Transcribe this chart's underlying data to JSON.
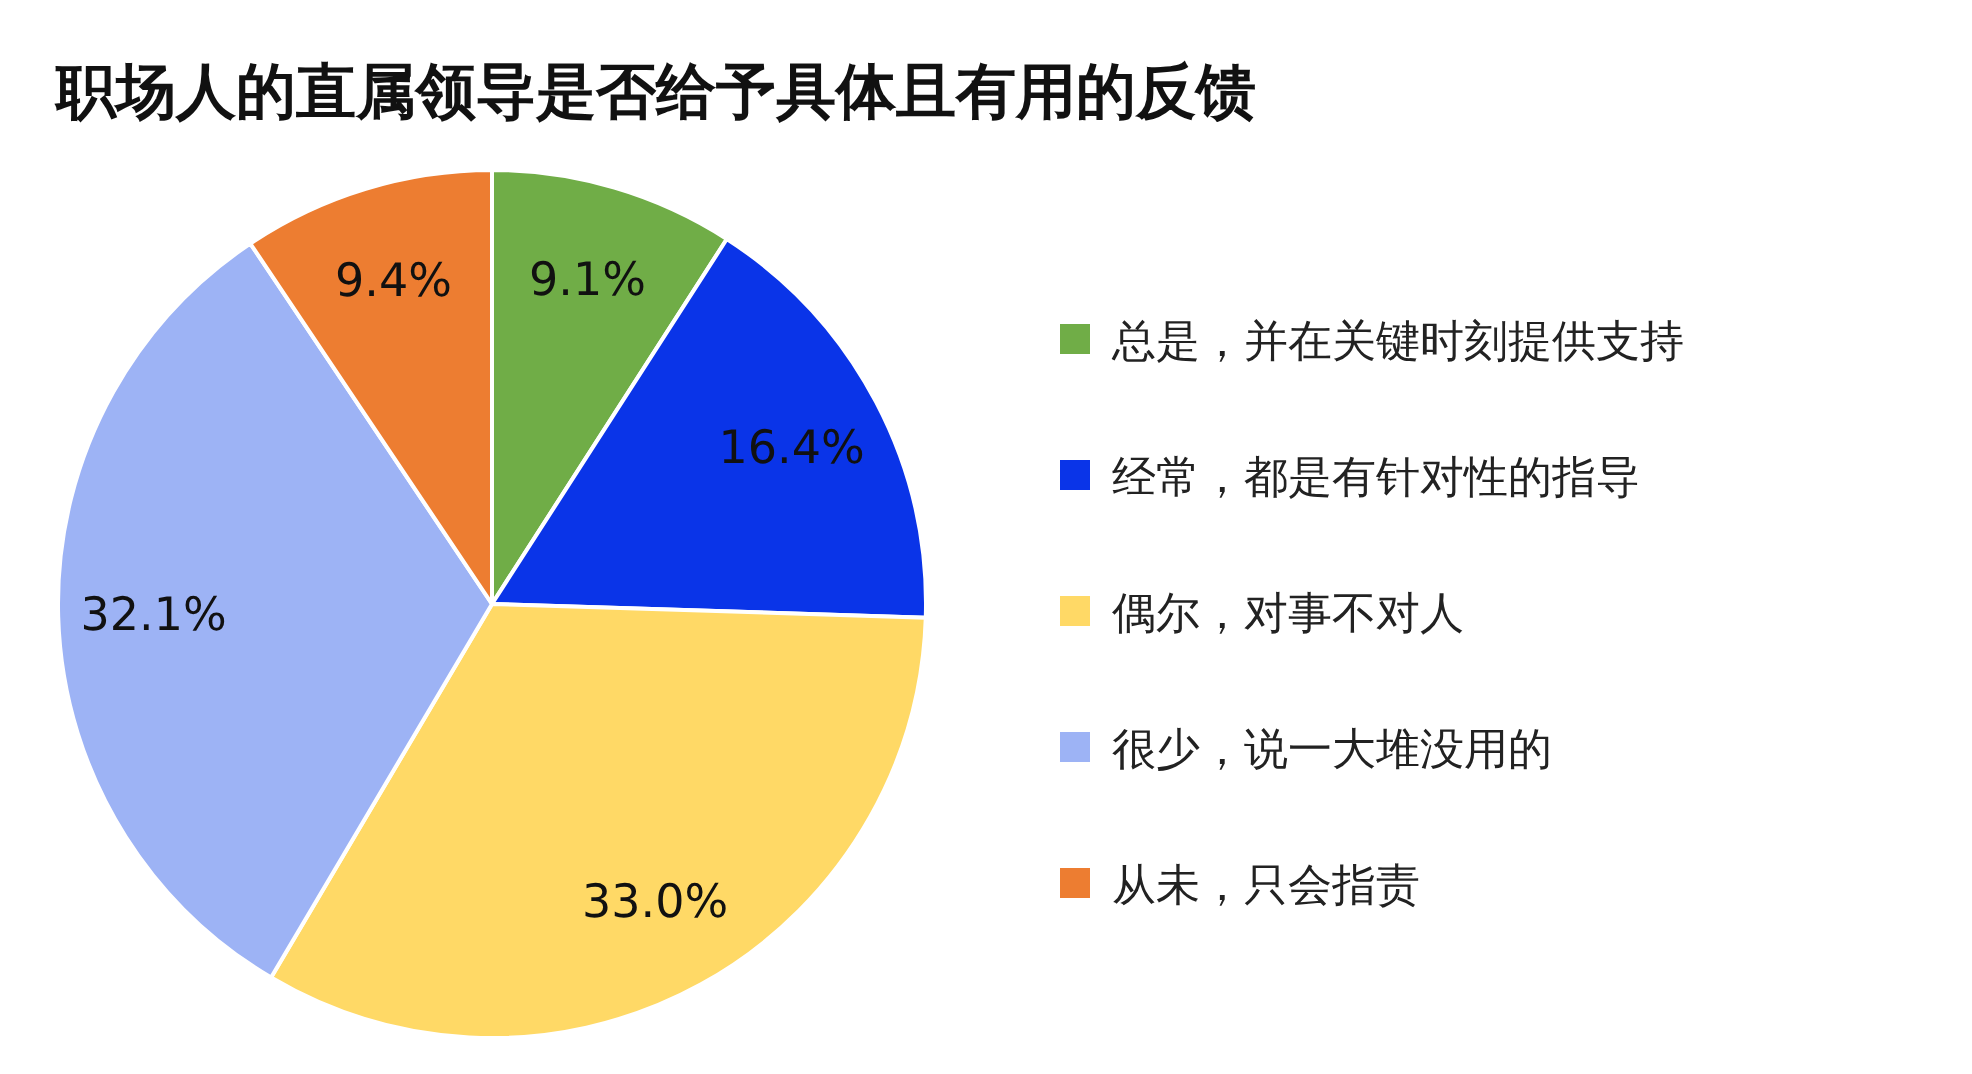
{
  "chart_data": {
    "type": "pie",
    "title": "职场人的直属领导是否给予具体且有用的反馈",
    "categories": [
      "总是，并在关键时刻提供支持",
      "经常，都是有针对性的指导",
      "偶尔，对事不对人",
      "很少，说一大堆没用的",
      "从未，只会指责"
    ],
    "values": [
      9.1,
      16.4,
      33.0,
      32.1,
      9.4
    ],
    "value_labels": [
      "9.1%",
      "16.4%",
      "33.0%",
      "32.1%",
      "9.4%"
    ],
    "colors": [
      "#70ad47",
      "#0a34e8",
      "#ffd966",
      "#9db3f5",
      "#ed7d31"
    ],
    "legend": "right"
  }
}
